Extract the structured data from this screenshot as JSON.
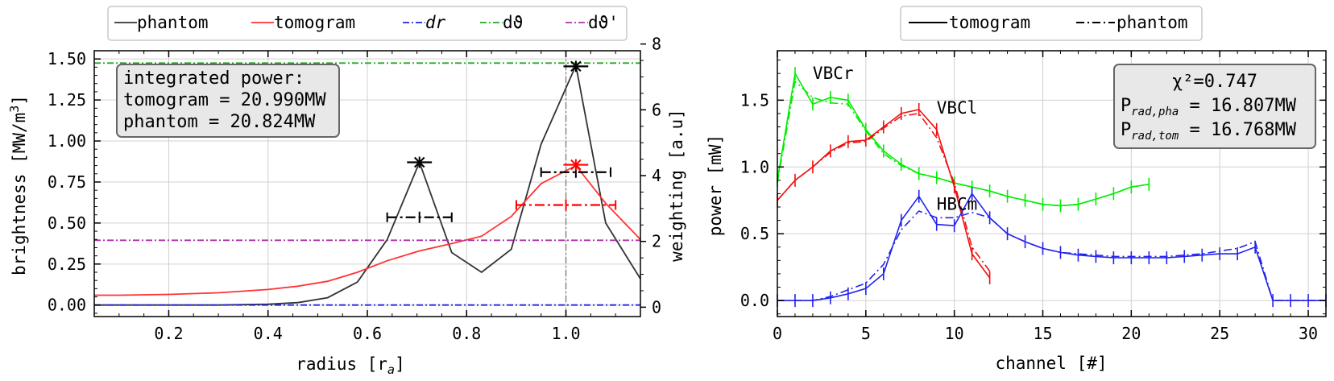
{
  "left_legend": [
    {
      "label": "phantom",
      "color": "#333333",
      "dash": "solid"
    },
    {
      "label": "tomogram",
      "color": "#ff3333",
      "dash": "solid"
    },
    {
      "label": "dr",
      "color": "#2222ee",
      "dash": "dashdot"
    },
    {
      "label": "dϑ",
      "color": "#22aa22",
      "dash": "dashdot"
    },
    {
      "label": "dϑ'",
      "color": "#aa33aa",
      "dash": "dashdot"
    }
  ],
  "right_legend": [
    {
      "label": "tomogram",
      "color": "#000000",
      "dash": "solid"
    },
    {
      "label": "phantom",
      "color": "#000000",
      "dash": "dashdot"
    }
  ],
  "info_box_left": {
    "line1": "integrated power:",
    "line2": "tomogram = 20.990MW",
    "line3": "phantom = 20.824MW"
  },
  "info_box_right": {
    "chi": "χ²=0.747",
    "pha_label": "P",
    "pha_sub": "rad,pha",
    "pha_value": " = 16.807MW",
    "tom_label": "P",
    "tom_sub": "rad,tom",
    "tom_value": " = 16.768MW"
  },
  "chart_data": [
    {
      "type": "line",
      "xlabel": "radius [r",
      "xlabel_sub": "a",
      "xlabel_end": "]",
      "ylabel": "brightness [MW/m",
      "ylabel_sup": "3",
      "ylabel_end": "]",
      "y2label": "weighting [a.u]",
      "xlim": [
        0.05,
        1.15
      ],
      "ylim": [
        -0.07,
        1.55
      ],
      "y2lim": [
        -0.07,
        1.55
      ],
      "xticks": [
        "0.2",
        "0.4",
        "0.6",
        "0.8",
        "1.0"
      ],
      "xtick_values": [
        0.2,
        0.4,
        0.6,
        0.8,
        1.0
      ],
      "yticks": [
        "0.00",
        "0.25",
        "0.50",
        "0.75",
        "1.00",
        "1.25",
        "1.50"
      ],
      "ytick_values": [
        0,
        0.25,
        0.5,
        0.75,
        1.0,
        1.25,
        1.5
      ],
      "y2ticks": [
        "0",
        "2",
        "4",
        "6",
        "8"
      ],
      "y2tick_values": [
        -0.013,
        0.388,
        0.789,
        1.19,
        1.591
      ],
      "grid": true,
      "legend_position": "top",
      "separatrix_x": 1.0,
      "series": [
        {
          "name": "phantom",
          "color": "#333333",
          "x": [
            0.05,
            0.1,
            0.2,
            0.3,
            0.4,
            0.46,
            0.52,
            0.58,
            0.64,
            0.705,
            0.77,
            0.83,
            0.89,
            0.95,
            1.02,
            1.08,
            1.15
          ],
          "y": [
            0.0,
            0.0,
            0.0,
            0.0,
            0.005,
            0.015,
            0.045,
            0.14,
            0.4,
            0.87,
            0.32,
            0.2,
            0.34,
            0.98,
            1.46,
            0.5,
            0.16
          ]
        },
        {
          "name": "tomogram",
          "color": "#ff3333",
          "x": [
            0.05,
            0.1,
            0.2,
            0.3,
            0.4,
            0.46,
            0.52,
            0.58,
            0.64,
            0.705,
            0.77,
            0.83,
            0.89,
            0.95,
            1.02,
            1.08,
            1.15
          ],
          "y": [
            0.06,
            0.06,
            0.065,
            0.075,
            0.095,
            0.115,
            0.145,
            0.2,
            0.27,
            0.33,
            0.375,
            0.42,
            0.54,
            0.74,
            0.85,
            0.62,
            0.4
          ]
        },
        {
          "name": "dr",
          "color": "#2222ee",
          "x": [
            0.05,
            1.15
          ],
          "y": [
            0.0,
            0.0
          ]
        },
        {
          "name": "dϑ",
          "color": "#22aa22",
          "x": [
            0.05,
            1.15
          ],
          "y": [
            1.475,
            1.475
          ]
        },
        {
          "name": "dϑ'",
          "color": "#aa33aa",
          "x": [
            0.05,
            1.15
          ],
          "y": [
            0.395,
            0.395
          ]
        }
      ],
      "markers": [
        {
          "color": "#000000",
          "x": 0.705,
          "y": 0.87,
          "hw": 0.025,
          "style": "solid"
        },
        {
          "color": "#000000",
          "x": 0.705,
          "y": 0.535,
          "hw": 0.065,
          "style": "dashdot"
        },
        {
          "color": "#000000",
          "x": 1.02,
          "y": 1.455,
          "hw": 0.025,
          "style": "solid"
        },
        {
          "color": "#000000",
          "x": 1.02,
          "y": 0.81,
          "hw": 0.07,
          "style": "dashdot"
        },
        {
          "color": "#ff0000",
          "x": 1.02,
          "y": 0.855,
          "hw": 0.025,
          "style": "solid"
        },
        {
          "color": "#ff0000",
          "x": 1.0,
          "y": 0.61,
          "hw": 0.1,
          "style": "dashdot"
        }
      ]
    },
    {
      "type": "line",
      "xlabel": "channel [#]",
      "ylabel": "power [mW]",
      "xlim": [
        0,
        31
      ],
      "ylim": [
        -0.12,
        1.87
      ],
      "xticks": [
        "0",
        "5",
        "10",
        "15",
        "20",
        "25",
        "30"
      ],
      "xtick_values": [
        0,
        5,
        10,
        15,
        20,
        25,
        30
      ],
      "yticks": [
        "0.0",
        "0.5",
        "1.0",
        "1.5"
      ],
      "ytick_values": [
        0,
        0.5,
        1.0,
        1.5
      ],
      "grid": true,
      "legend_position": "top",
      "labels": [
        {
          "text": "VBCr",
          "color": "#00ee00",
          "x": 2.0,
          "y": 1.66
        },
        {
          "text": "VBCl",
          "color": "#ee1111",
          "x": 9.0,
          "y": 1.4
        },
        {
          "text": "HBCm",
          "color": "#2222ee",
          "x": 9.0,
          "y": 0.68
        }
      ],
      "series": [
        {
          "name": "VBCr",
          "color": "#00ee00",
          "x": [
            0,
            1,
            2,
            3,
            4,
            5,
            6,
            7,
            8,
            9,
            10,
            11,
            12,
            13,
            14,
            15,
            16,
            17,
            18,
            19,
            20,
            21
          ],
          "tomogram": [
            0.9,
            1.7,
            1.47,
            1.52,
            1.5,
            1.28,
            1.12,
            1.02,
            0.95,
            0.92,
            0.88,
            0.85,
            0.82,
            0.78,
            0.75,
            0.72,
            0.71,
            0.72,
            0.76,
            0.8,
            0.85,
            0.87
          ],
          "phantom": [
            0.88,
            1.64,
            1.52,
            1.48,
            1.47,
            1.27,
            1.1,
            1.01,
            0.95,
            0.92,
            0.88,
            0.85,
            0.82,
            0.78,
            0.75,
            0.72,
            0.71,
            0.72,
            0.76,
            0.8,
            0.85,
            0.87
          ]
        },
        {
          "name": "VBCl",
          "color": "#ee1111",
          "x": [
            0,
            1,
            2,
            3,
            4,
            5,
            6,
            7,
            8,
            9,
            10,
            11,
            12
          ],
          "tomogram": [
            0.75,
            0.9,
            1.0,
            1.12,
            1.19,
            1.2,
            1.3,
            1.4,
            1.43,
            1.28,
            0.85,
            0.35,
            0.17
          ],
          "phantom": [
            0.75,
            0.9,
            1.0,
            1.11,
            1.18,
            1.19,
            1.29,
            1.38,
            1.4,
            1.22,
            0.88,
            0.4,
            0.22
          ]
        },
        {
          "name": "HBCm",
          "color": "#2222ee",
          "x": [
            0,
            1,
            2,
            3,
            4,
            5,
            6,
            7,
            8,
            9,
            10,
            11,
            12,
            13,
            14,
            15,
            16,
            17,
            18,
            19,
            20,
            21,
            22,
            23,
            24,
            25,
            26,
            27,
            28,
            29,
            30,
            31
          ],
          "tomogram": [
            0.0,
            0.0,
            0.0,
            0.02,
            0.05,
            0.09,
            0.2,
            0.6,
            0.78,
            0.57,
            0.56,
            0.8,
            0.62,
            0.5,
            0.44,
            0.39,
            0.36,
            0.34,
            0.33,
            0.32,
            0.32,
            0.32,
            0.32,
            0.33,
            0.34,
            0.35,
            0.35,
            0.4,
            0.0,
            0.0,
            0.0,
            0.0
          ],
          "phantom": [
            0.0,
            0.0,
            0.0,
            0.03,
            0.08,
            0.13,
            0.27,
            0.53,
            0.67,
            0.62,
            0.62,
            0.66,
            0.62,
            0.5,
            0.44,
            0.39,
            0.36,
            0.35,
            0.34,
            0.33,
            0.33,
            0.33,
            0.33,
            0.34,
            0.35,
            0.37,
            0.39,
            0.44,
            0.0,
            0.0,
            0.0,
            0.0
          ]
        }
      ]
    }
  ]
}
